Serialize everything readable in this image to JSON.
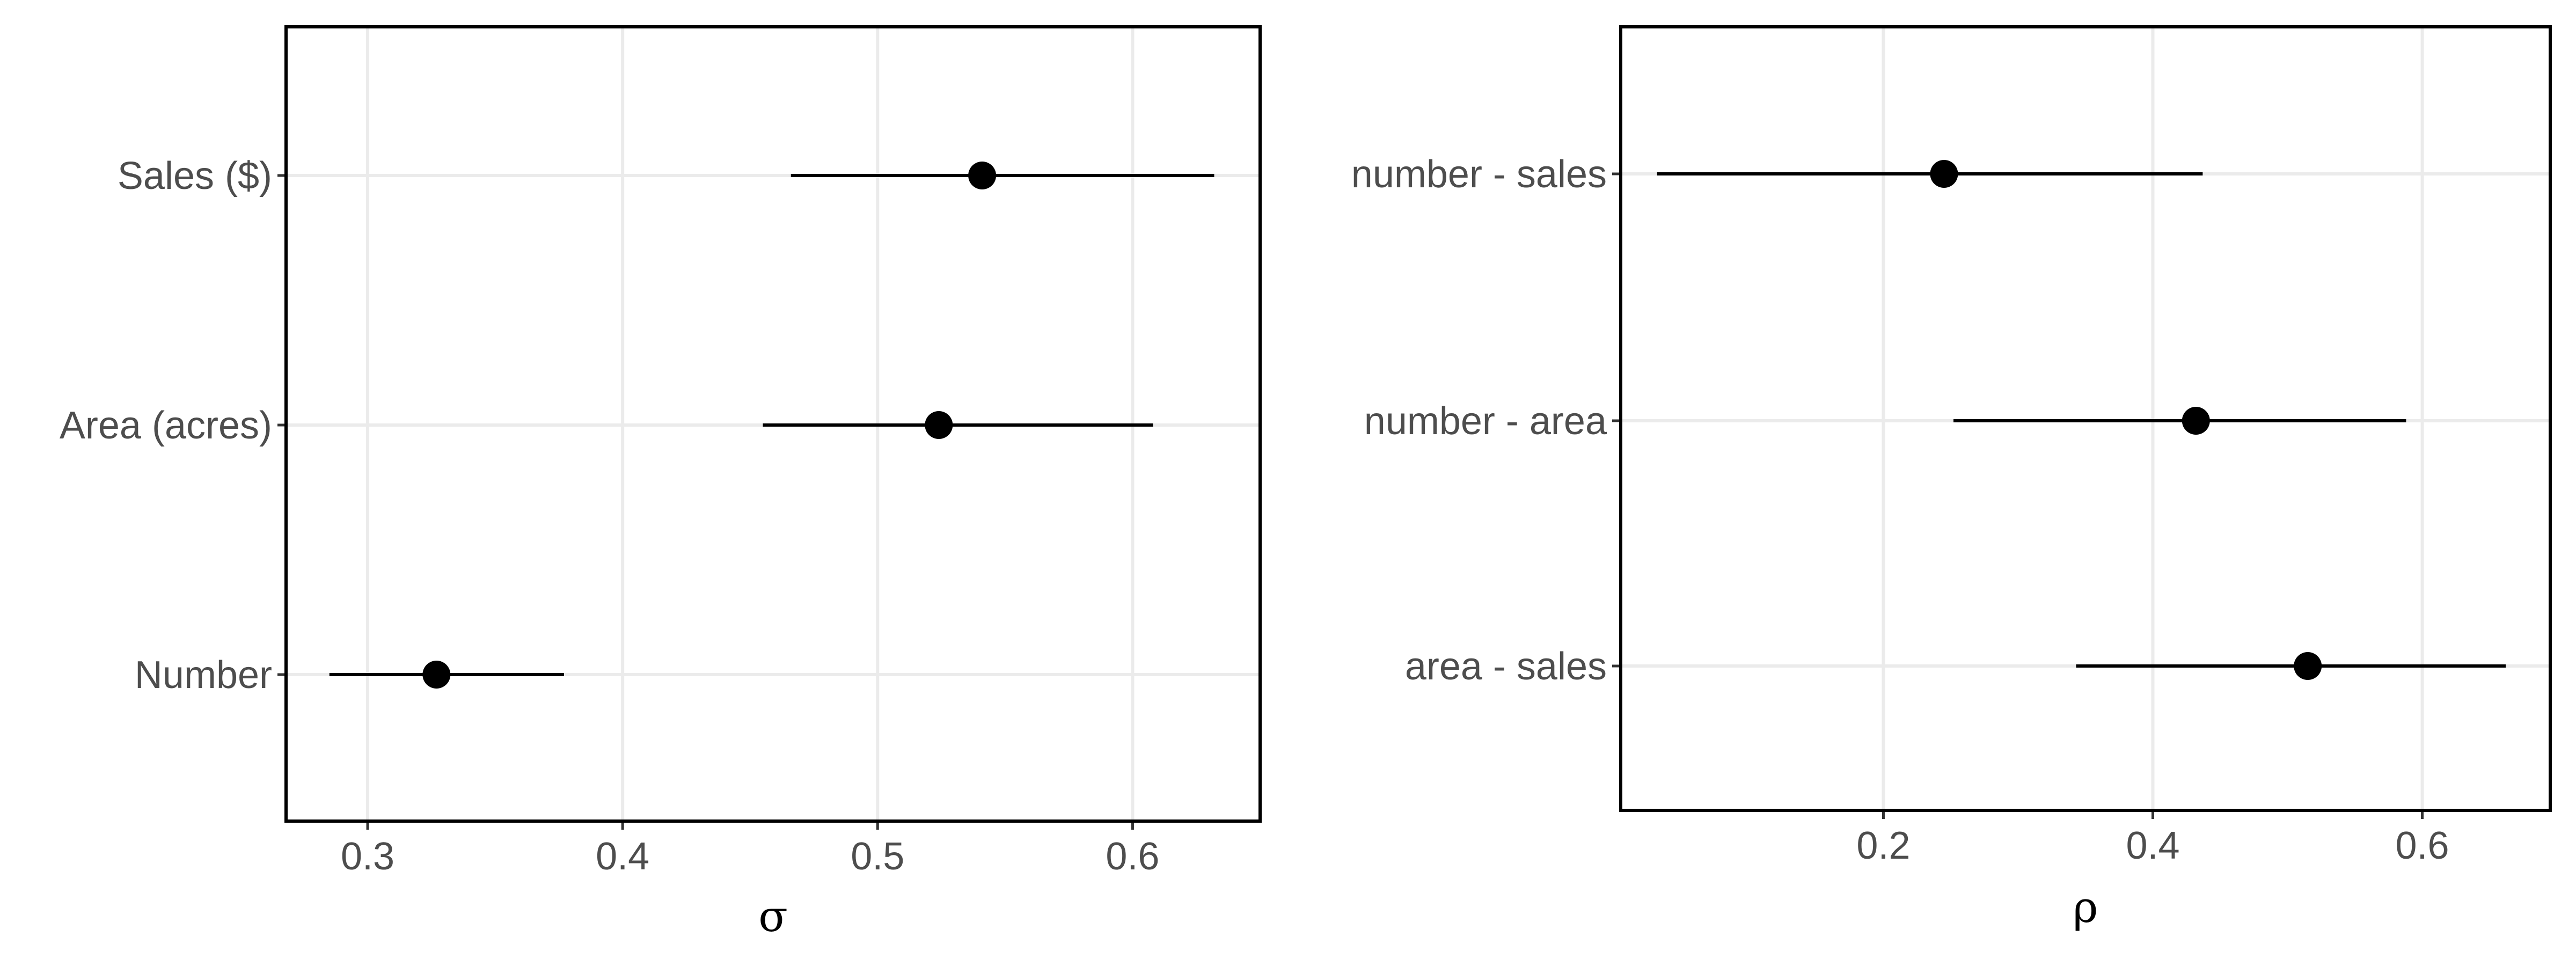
{
  "chart_data": [
    {
      "type": "scatter",
      "style": "point-range",
      "title": "",
      "xlabel": "σ",
      "ylabel": "",
      "xlim": [
        0.268,
        0.65
      ],
      "x_ticks": [
        0.3,
        0.4,
        0.5,
        0.6
      ],
      "x_tick_labels": [
        "0.3",
        "0.4",
        "0.5",
        "0.6"
      ],
      "categories": [
        "Sales ($)",
        "Area (acres)",
        "Number"
      ],
      "values": [
        0.541,
        0.524,
        0.327
      ],
      "lower": [
        0.466,
        0.455,
        0.285
      ],
      "upper": [
        0.632,
        0.608,
        0.377
      ],
      "grid": true,
      "legend": "none",
      "colors": {
        "point": "#000000",
        "grid": "#ebebeb",
        "frame": "#000000",
        "text": "#4d4d4d"
      }
    },
    {
      "type": "scatter",
      "style": "point-range",
      "title": "",
      "xlabel": "ρ",
      "ylabel": "",
      "xlim": [
        0.005,
        0.695
      ],
      "x_ticks": [
        0.2,
        0.4,
        0.6
      ],
      "x_tick_labels": [
        "0.2",
        "0.4",
        "0.6"
      ],
      "categories": [
        "number - sales",
        "number - area",
        "area - sales"
      ],
      "values": [
        0.245,
        0.432,
        0.515
      ],
      "lower": [
        0.032,
        0.252,
        0.343
      ],
      "upper": [
        0.437,
        0.588,
        0.662
      ],
      "grid": true,
      "legend": "none",
      "colors": {
        "point": "#000000",
        "grid": "#ebebeb",
        "frame": "#000000",
        "text": "#4d4d4d"
      }
    }
  ]
}
